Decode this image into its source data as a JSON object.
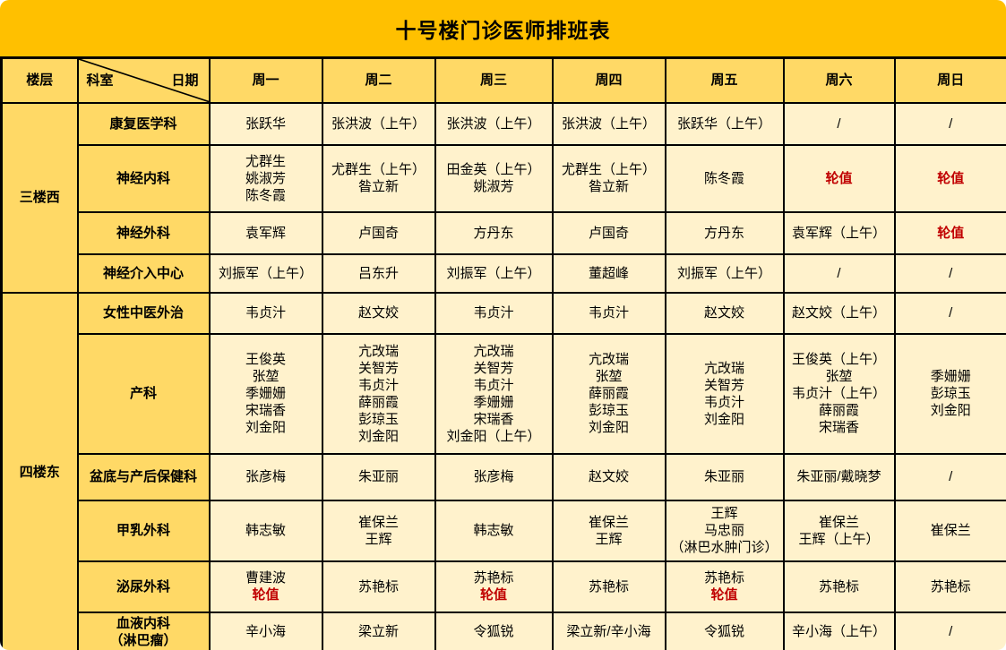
{
  "title": "十号楼门诊医师排班表",
  "header": {
    "floor_label": "楼层",
    "dept_label": "科室",
    "date_label": "日期",
    "days": [
      "周一",
      "周二",
      "周三",
      "周四",
      "周五",
      "周六",
      "周日"
    ]
  },
  "colors": {
    "title_bg": "#FFC000",
    "header_bg": "#FFD966",
    "cell_bg": "#FFF2CC",
    "border": "#000000",
    "duty_red": "#C00000"
  },
  "duty_label": "轮值",
  "empty_label": "/",
  "floors": [
    {
      "name": "三楼西",
      "rows": [
        {
          "dept": [
            "康复医学科"
          ],
          "cells": [
            [
              "张跃华"
            ],
            [
              "张洪波（上午）"
            ],
            [
              "张洪波（上午）"
            ],
            [
              "张洪波（上午）"
            ],
            [
              "张跃华（上午）"
            ],
            [
              "/"
            ],
            [
              "/"
            ]
          ]
        },
        {
          "dept": [
            "神经内科"
          ],
          "cells": [
            [
              "尤群生",
              "姚淑芳",
              "陈冬霞"
            ],
            [
              "尤群生（上午）",
              "昝立新"
            ],
            [
              "田金英（上午）",
              "姚淑芳"
            ],
            [
              "尤群生（上午）",
              "昝立新"
            ],
            [
              "陈冬霞"
            ],
            [
              {
                "text": "轮值",
                "red": true
              }
            ],
            [
              {
                "text": "轮值",
                "red": true
              }
            ]
          ]
        },
        {
          "dept": [
            "神经外科"
          ],
          "cells": [
            [
              "袁军辉"
            ],
            [
              "卢国奇"
            ],
            [
              "方丹东"
            ],
            [
              "卢国奇"
            ],
            [
              "方丹东"
            ],
            [
              "袁军辉（上午）"
            ],
            [
              {
                "text": "轮值",
                "red": true
              }
            ]
          ]
        },
        {
          "dept": [
            "神经介入中心"
          ],
          "cells": [
            [
              "刘振军（上午）"
            ],
            [
              "吕东升"
            ],
            [
              "刘振军（上午）"
            ],
            [
              "董超峰"
            ],
            [
              "刘振军（上午）"
            ],
            [
              "/"
            ],
            [
              "/"
            ]
          ]
        }
      ]
    },
    {
      "name": "四楼东",
      "rows": [
        {
          "dept": [
            "女性中医外治"
          ],
          "cells": [
            [
              "韦贞汁"
            ],
            [
              "赵文姣"
            ],
            [
              "韦贞汁"
            ],
            [
              "韦贞汁"
            ],
            [
              "赵文姣"
            ],
            [
              "赵文姣（上午）"
            ],
            [
              "/"
            ]
          ]
        },
        {
          "dept": [
            "产科"
          ],
          "cells": [
            [
              "王俊英",
              "张堃",
              "季姗姗",
              "宋瑞香",
              "刘金阳"
            ],
            [
              "亢改瑞",
              "关智芳",
              "韦贞汁",
              "薛丽霞",
              "彭琼玉",
              "刘金阳"
            ],
            [
              "亢改瑞",
              "关智芳",
              "韦贞汁",
              "季姗姗",
              "宋瑞香",
              "刘金阳（上午）"
            ],
            [
              "亢改瑞",
              "张堃",
              "薛丽霞",
              "彭琼玉",
              "刘金阳"
            ],
            [
              "亢改瑞",
              "关智芳",
              "韦贞汁",
              "刘金阳"
            ],
            [
              "王俊英（上午）",
              "张堃",
              "韦贞汁（上午）",
              "薛丽霞",
              "宋瑞香"
            ],
            [
              "季姗姗",
              "彭琼玉",
              "刘金阳"
            ]
          ]
        },
        {
          "dept": [
            "盆底与产后保健科"
          ],
          "cells": [
            [
              "张彦梅"
            ],
            [
              "朱亚丽"
            ],
            [
              "张彦梅"
            ],
            [
              "赵文姣"
            ],
            [
              "朱亚丽"
            ],
            [
              "朱亚丽/戴晓梦"
            ],
            [
              "/"
            ]
          ]
        },
        {
          "dept": [
            "甲乳外科"
          ],
          "cells": [
            [
              "韩志敏"
            ],
            [
              "崔保兰",
              "王辉"
            ],
            [
              "韩志敏"
            ],
            [
              "崔保兰",
              "王辉"
            ],
            [
              "王辉",
              "马忠丽",
              "（淋巴水肿门诊）"
            ],
            [
              "崔保兰",
              "王辉（上午）"
            ],
            [
              "崔保兰"
            ]
          ]
        },
        {
          "dept": [
            "泌尿外科"
          ],
          "cells": [
            [
              "曹建波",
              {
                "text": "轮值",
                "red": true
              }
            ],
            [
              "苏艳标"
            ],
            [
              "苏艳标",
              {
                "text": "轮值",
                "red": true
              }
            ],
            [
              "苏艳标"
            ],
            [
              "苏艳标",
              {
                "text": "轮值",
                "red": true
              }
            ],
            [
              "苏艳标"
            ],
            [
              "苏艳标"
            ]
          ]
        },
        {
          "dept": [
            "血液内科",
            "（淋巴瘤）"
          ],
          "cells": [
            [
              "辛小海"
            ],
            [
              "梁立新"
            ],
            [
              "令狐锐"
            ],
            [
              "梁立新/辛小海"
            ],
            [
              "令狐锐"
            ],
            [
              "辛小海（上午）"
            ],
            [
              "/"
            ]
          ]
        }
      ]
    }
  ]
}
